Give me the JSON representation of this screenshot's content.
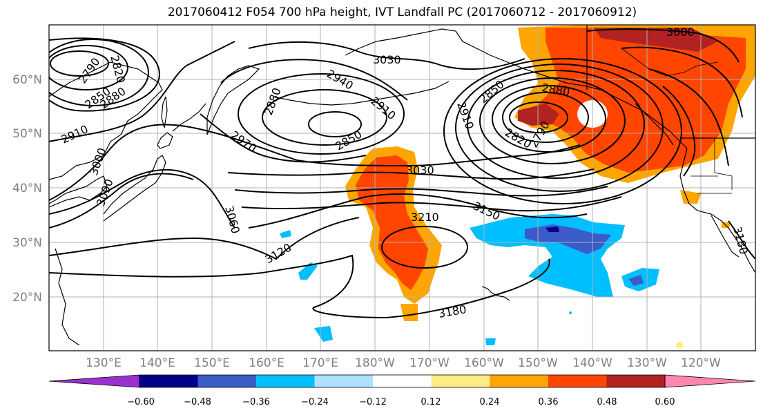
{
  "title": "2017060412 F054 700 hPa height, IVT Landfall PC (2017060712 - 2017060912)",
  "lat_labels": [
    "60°N",
    "50°N",
    "40°N",
    "30°N",
    "20°N"
  ],
  "lon_labels": [
    "130°E",
    "140°E",
    "150°E",
    "160°E",
    "170°E",
    "180°W",
    "170°W",
    "160°W",
    "150°W",
    "140°W",
    "130°W",
    "120°W"
  ],
  "contour_labels": [
    "2790",
    "2820",
    "2850",
    "2880",
    "2910",
    "3000",
    "3090",
    "3060",
    "3120",
    "2970",
    "2880",
    "2940",
    "3030",
    "2910",
    "2850",
    "3030",
    "3210",
    "3150",
    "3180",
    "2850",
    "2880",
    "2910",
    "2820",
    "2790",
    "3000",
    "3180"
  ],
  "colorbar": {
    "ticks": [
      "−0.60",
      "−0.48",
      "−0.36",
      "−0.24",
      "−0.12",
      "0.12",
      "0.24",
      "0.36",
      "0.48",
      "0.60"
    ],
    "colors": [
      "#9932CC",
      "#00008B",
      "#3A5BC8",
      "#00BFFF",
      "#B0E0FF",
      "#FFFFFF",
      "#FFEB84",
      "#FFA500",
      "#FF4500",
      "#B22222",
      "#FF86AE"
    ]
  }
}
